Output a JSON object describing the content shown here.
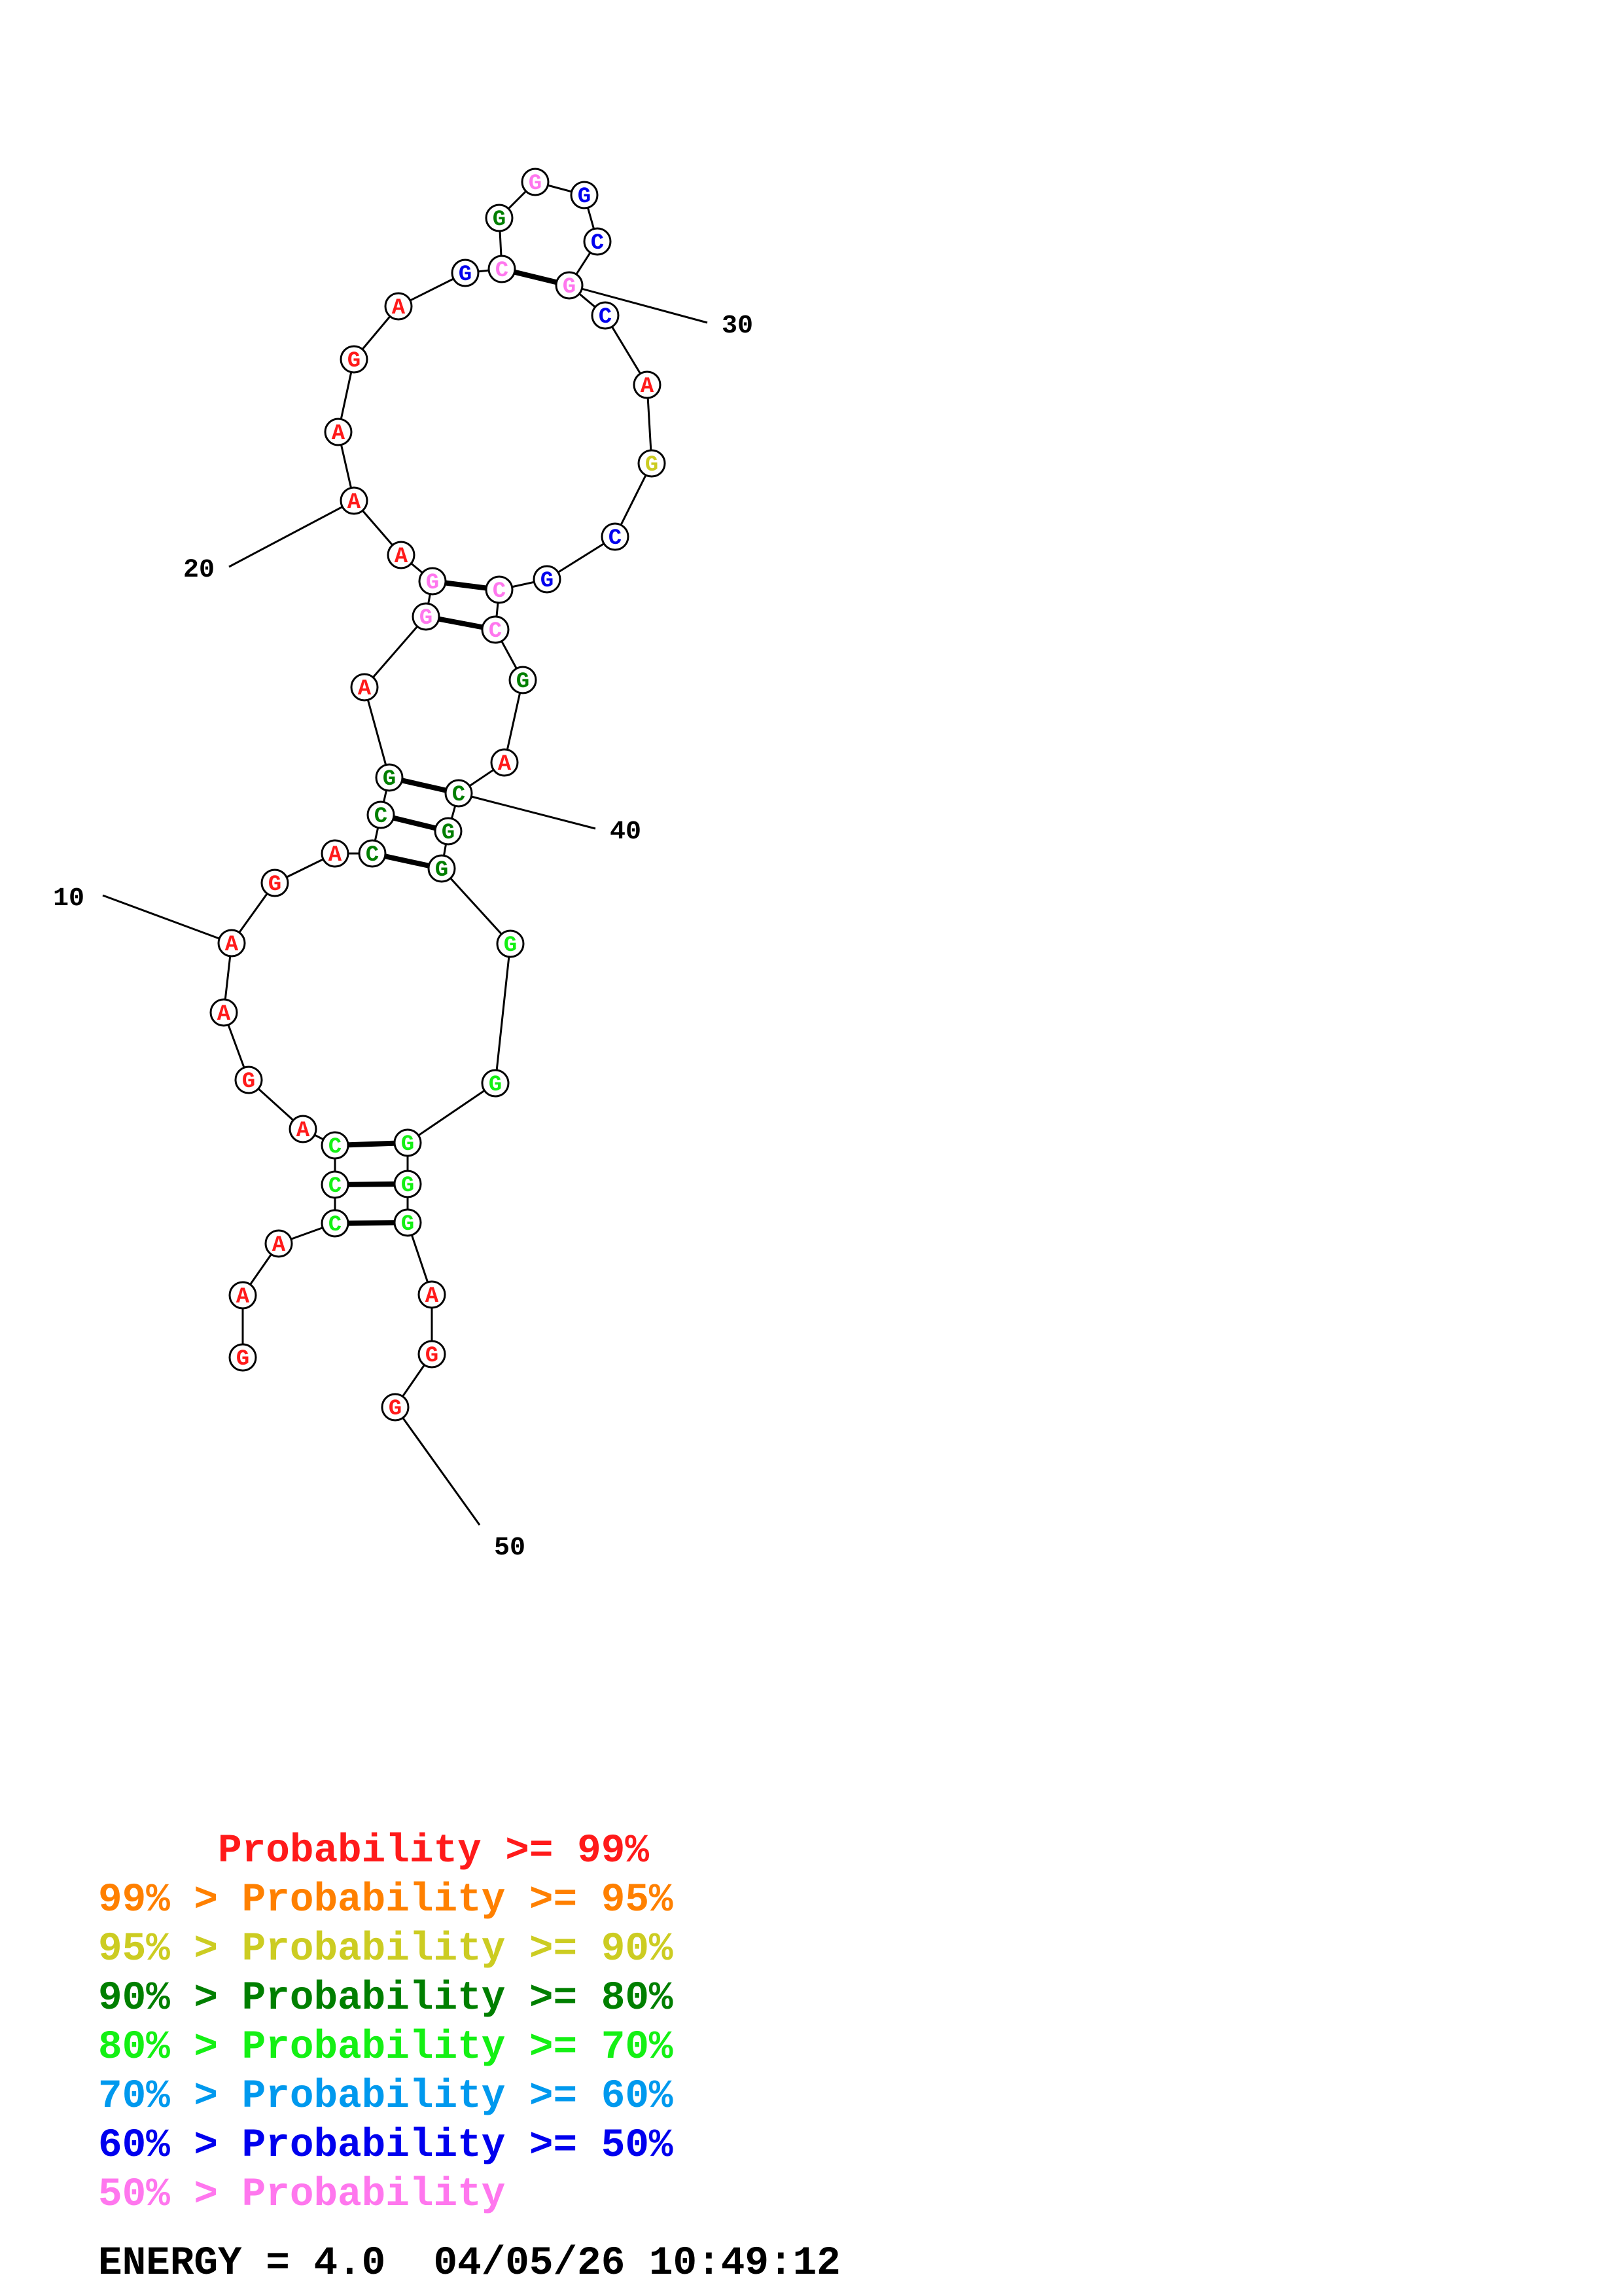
{
  "colors": {
    "red": "#ff1a1a",
    "orange": "#ff8000",
    "yellow": "#cccc22",
    "darkgreen": "#007f00",
    "green": "#14f014",
    "cyan": "#0099ee",
    "blue": "#0000ee",
    "pink": "#ff77ee",
    "black": "#000000"
  },
  "nucleotides": [
    {
      "base": "G",
      "color": "red"
    },
    {
      "base": "A",
      "color": "red"
    },
    {
      "base": "A",
      "color": "red"
    },
    {
      "base": "C",
      "color": "green"
    },
    {
      "base": "C",
      "color": "green"
    },
    {
      "base": "C",
      "color": "green"
    },
    {
      "base": "A",
      "color": "red"
    },
    {
      "base": "G",
      "color": "red"
    },
    {
      "base": "A",
      "color": "red"
    },
    {
      "base": "A",
      "color": "red"
    },
    {
      "base": "G",
      "color": "red"
    },
    {
      "base": "A",
      "color": "red"
    },
    {
      "base": "C",
      "color": "darkgreen"
    },
    {
      "base": "C",
      "color": "darkgreen"
    },
    {
      "base": "G",
      "color": "darkgreen"
    },
    {
      "base": "A",
      "color": "red"
    },
    {
      "base": "G",
      "color": "pink"
    },
    {
      "base": "G",
      "color": "pink"
    },
    {
      "base": "A",
      "color": "red"
    },
    {
      "base": "A",
      "color": "red"
    },
    {
      "base": "A",
      "color": "red"
    },
    {
      "base": "G",
      "color": "red"
    },
    {
      "base": "A",
      "color": "red"
    },
    {
      "base": "G",
      "color": "blue"
    },
    {
      "base": "C",
      "color": "pink"
    },
    {
      "base": "G",
      "color": "darkgreen"
    },
    {
      "base": "G",
      "color": "pink"
    },
    {
      "base": "G",
      "color": "blue"
    },
    {
      "base": "C",
      "color": "blue"
    },
    {
      "base": "G",
      "color": "pink"
    },
    {
      "base": "C",
      "color": "blue"
    },
    {
      "base": "A",
      "color": "red"
    },
    {
      "base": "G",
      "color": "yellow"
    },
    {
      "base": "C",
      "color": "blue"
    },
    {
      "base": "G",
      "color": "blue"
    },
    {
      "base": "C",
      "color": "pink"
    },
    {
      "base": "C",
      "color": "pink"
    },
    {
      "base": "G",
      "color": "darkgreen"
    },
    {
      "base": "A",
      "color": "red"
    },
    {
      "base": "C",
      "color": "darkgreen"
    },
    {
      "base": "G",
      "color": "darkgreen"
    },
    {
      "base": "G",
      "color": "darkgreen"
    },
    {
      "base": "G",
      "color": "green"
    },
    {
      "base": "G",
      "color": "green"
    },
    {
      "base": "G",
      "color": "green"
    },
    {
      "base": "G",
      "color": "green"
    },
    {
      "base": "G",
      "color": "green"
    },
    {
      "base": "A",
      "color": "red"
    },
    {
      "base": "G",
      "color": "red"
    },
    {
      "base": "G",
      "color": "red"
    }
  ],
  "base_pairs": [
    [
      4,
      47
    ],
    [
      5,
      46
    ],
    [
      6,
      45
    ],
    [
      13,
      42
    ],
    [
      14,
      41
    ],
    [
      15,
      40
    ],
    [
      17,
      37
    ],
    [
      18,
      36
    ],
    [
      25,
      30
    ]
  ],
  "position_labels": [
    {
      "text": "10",
      "nt": 10
    },
    {
      "text": "20",
      "nt": 20
    },
    {
      "text": "30",
      "nt": 30
    },
    {
      "text": "40",
      "nt": 40
    },
    {
      "text": "50",
      "nt": 50
    }
  ],
  "legend": [
    {
      "text": "     Probability >= 99%",
      "color": "red"
    },
    {
      "text": "99% > Probability >= 95%",
      "color": "orange"
    },
    {
      "text": "95% > Probability >= 90%",
      "color": "yellow"
    },
    {
      "text": "90% > Probability >= 80%",
      "color": "darkgreen"
    },
    {
      "text": "80% > Probability >= 70%",
      "color": "green"
    },
    {
      "text": "70% > Probability >= 60%",
      "color": "cyan"
    },
    {
      "text": "60% > Probability >= 50%",
      "color": "blue"
    },
    {
      "text": "50% > Probability",
      "color": "pink"
    }
  ],
  "footer": "ENERGY = 4.0  04/05/26 10:49:12"
}
